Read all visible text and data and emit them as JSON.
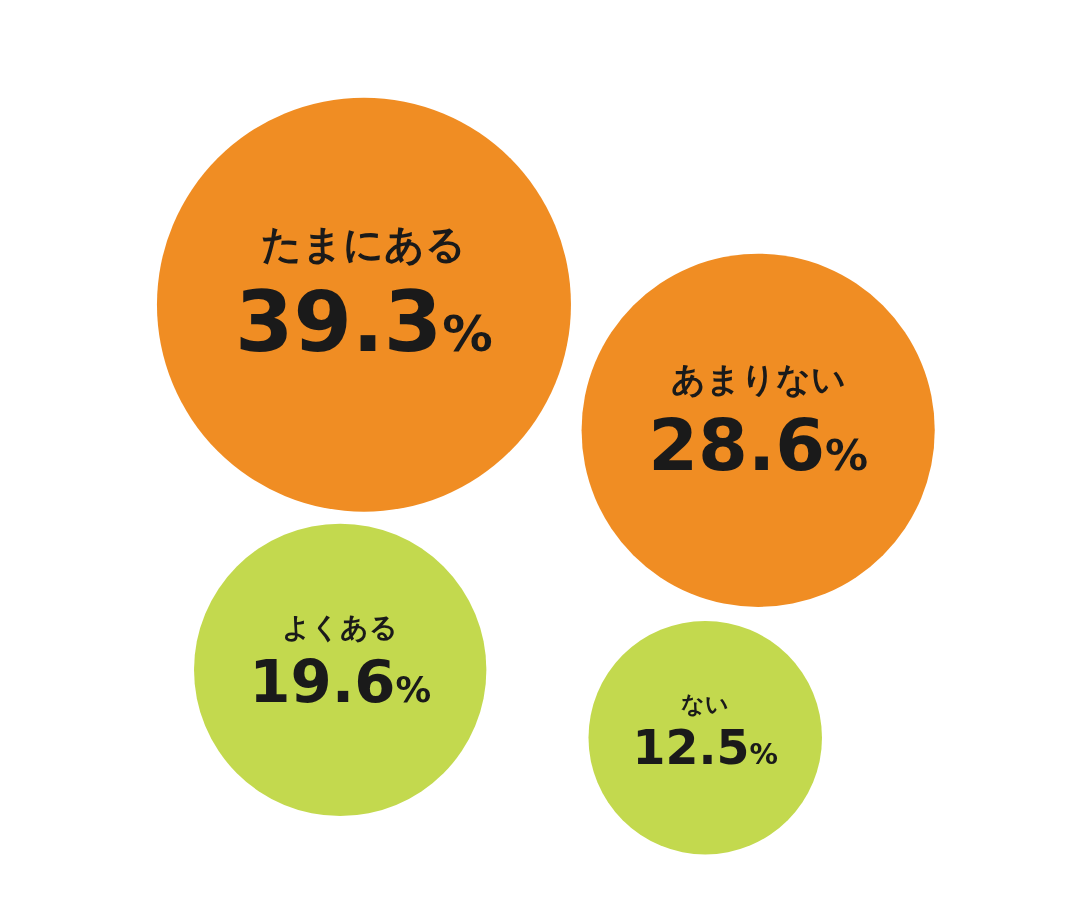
{
  "chart_data": {
    "type": "other",
    "categories": [
      "たまにある",
      "あまりない",
      "よくある",
      "ない"
    ],
    "values": [
      39.3,
      28.6,
      19.6,
      12.5
    ],
    "colors": [
      "#f08d23",
      "#f08d23",
      "#c3d94e",
      "#c3d94e"
    ],
    "value_labels": [
      "39.3%",
      "28.6%",
      "19.6%",
      "12.5%"
    ]
  }
}
